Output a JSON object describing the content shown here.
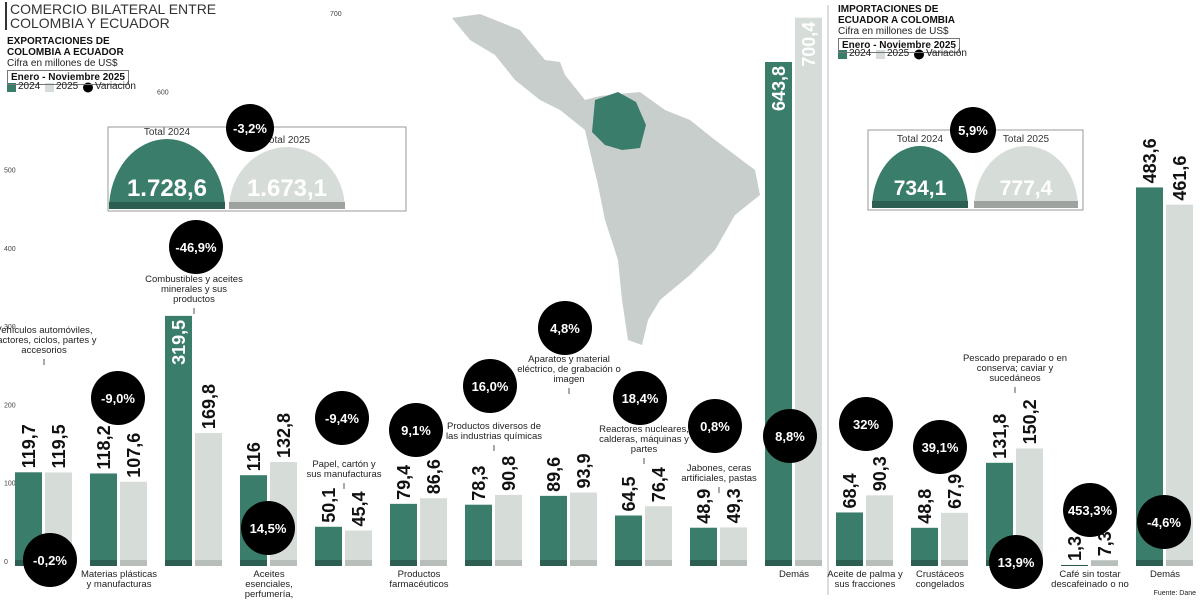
{
  "header": {
    "title": "COMERCIO BILATERAL ENTRE COLOMBIA Y ECUADOR"
  },
  "source": "Fuente: Dane",
  "chart_data": [
    {
      "type": "bar",
      "title": "EXPORTACIONES DE COLOMBIA A ECUADOR",
      "subtitle": "Cifra en millones de US$",
      "period": "Enero - Noviembre 2025",
      "categories": [
        "Vehículos automóviles, tractores, ciclos, partes y accesorios",
        "Materias plásticas y manufacturas",
        "Combustibles y aceites minerales y sus productos",
        "Aceites esenciales, perfumería, cosméticos",
        "Papel, cartón y sus manufacturas",
        "Productos farmacéuticos",
        "Productos diversos de las industrias químicas",
        "Aparatos y material eléctrico, de grabación o imagen",
        "Reactores nucleares, calderas, máquinas y partes",
        "Jabones, ceras artificiales, pastas",
        "Demás"
      ],
      "series": [
        {
          "name": "2024",
          "color": "#3b7d6b",
          "values": [
            119.7,
            118.2,
            319.5,
            116,
            50.1,
            79.4,
            78.3,
            89.6,
            64.5,
            48.9,
            643.8
          ],
          "value_labels": [
            "119,7",
            "118,2",
            "319,5",
            "116",
            "50,1",
            "79,4",
            "78,3",
            "89,6",
            "64,5",
            "48,9",
            "643,8"
          ]
        },
        {
          "name": "2025",
          "color": "#d6ddd9",
          "values": [
            119.5,
            107.6,
            169.8,
            132.8,
            45.4,
            86.6,
            90.8,
            93.9,
            76.4,
            49.3,
            700.4
          ],
          "value_labels": [
            "119,5",
            "107,6",
            "169,8",
            "132,8",
            "45,4",
            "86,6",
            "90,8",
            "93,9",
            "76,4",
            "49,3",
            "700,4"
          ]
        }
      ],
      "variation": {
        "name": "Variación",
        "color": "#000000",
        "values": [
          -0.2,
          -9.0,
          -46.9,
          14.5,
          -9.4,
          9.1,
          16.0,
          4.8,
          18.4,
          0.8,
          8.8
        ],
        "value_labels": [
          "-0,2%",
          "-9,0%",
          "-46,9%",
          "14,5%",
          "-9,4%",
          "9,1%",
          "16,0%",
          "4,8%",
          "18,4%",
          "0,8%",
          "8,8%"
        ]
      },
      "totals": {
        "labels": [
          "Total 2024",
          "Total 2025"
        ],
        "values": [
          1728.6,
          1673.1
        ],
        "value_labels": [
          "1.728,6",
          "1.673,1"
        ],
        "variation": -3.2,
        "variation_label": "-3,2%"
      },
      "ylim": [
        0,
        700
      ],
      "yticks": [
        0,
        100,
        200,
        300,
        400,
        500,
        600,
        700
      ]
    },
    {
      "type": "bar",
      "title": "IMPORTACIONES DE ECUADOR A COLOMBIA",
      "subtitle": "Cifra en millones de US$",
      "period": "Enero - Noviembre 2025",
      "categories": [
        "Aceite de palma y sus fracciones",
        "Crustáceos congelados",
        "Pescado preparado o en conserva; caviar y sucedáneos",
        "Café sin tostar descafeinado o no",
        "Demás"
      ],
      "series": [
        {
          "name": "2024",
          "color": "#3b7d6b",
          "values": [
            68.4,
            48.8,
            131.8,
            1.3,
            483.6
          ],
          "value_labels": [
            "68,4",
            "48,8",
            "131,8",
            "1,3",
            "483,6"
          ]
        },
        {
          "name": "2025",
          "color": "#d6ddd9",
          "values": [
            90.3,
            67.9,
            150.2,
            7.3,
            461.6
          ],
          "value_labels": [
            "90,3",
            "67,9",
            "150,2",
            "7,3",
            "461,6"
          ]
        }
      ],
      "variation": {
        "name": "Variación",
        "color": "#000000",
        "values": [
          32,
          39.1,
          13.9,
          453.3,
          -4.6
        ],
        "value_labels": [
          "32%",
          "39,1%",
          "13,9%",
          "453,3%",
          "-4,6%"
        ]
      },
      "totals": {
        "labels": [
          "Total 2024",
          "Total 2025"
        ],
        "values": [
          734.1,
          777.4
        ],
        "value_labels": [
          "734,1",
          "777,4"
        ],
        "variation": 5.9,
        "variation_label": "5,9%"
      },
      "ylim": [
        0,
        700
      ]
    }
  ]
}
